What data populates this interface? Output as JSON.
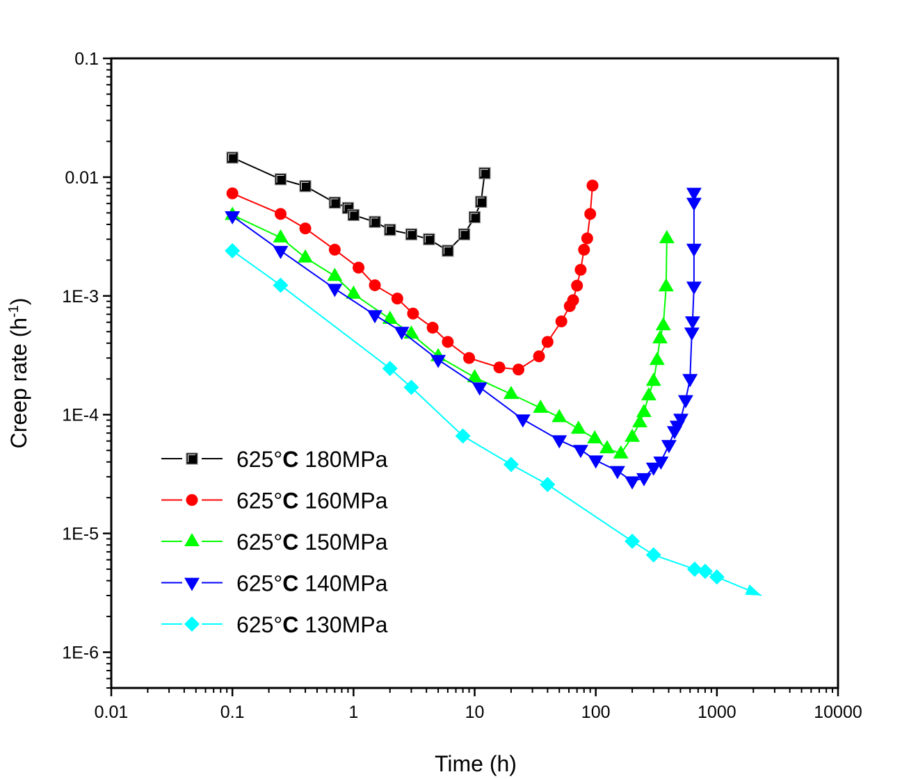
{
  "chart_data": {
    "type": "line",
    "title": "",
    "xlabel": "Time (h)",
    "ylabel": "Creep rate (h",
    "ylabel_superscript": "-1",
    "ylabel_suffix": ")",
    "xscale": "log",
    "yscale": "log",
    "xlim": [
      0.01,
      10000
    ],
    "ylim": [
      5e-07,
      0.1
    ],
    "grid": false,
    "legend_position": "bottom-left",
    "x_ticks": [
      {
        "value": 0.01,
        "label": "0.01"
      },
      {
        "value": 0.1,
        "label": "0.1"
      },
      {
        "value": 1,
        "label": "1"
      },
      {
        "value": 10,
        "label": "10"
      },
      {
        "value": 100,
        "label": "100"
      },
      {
        "value": 1000,
        "label": "1000"
      },
      {
        "value": 10000,
        "label": "10000"
      }
    ],
    "y_ticks": [
      {
        "value": 0.1,
        "label": "0.1"
      },
      {
        "value": 0.01,
        "label": "0.01"
      },
      {
        "value": 0.001,
        "label": "1E-3"
      },
      {
        "value": 0.0001,
        "label": "1E-4"
      },
      {
        "value": 1e-05,
        "label": "1E-5"
      },
      {
        "value": 1e-06,
        "label": "1E-6"
      }
    ],
    "series": [
      {
        "name": "625°C 180MPa",
        "legend_prefix": "625°",
        "legend_bold": "C",
        "legend_suffix": " 180MPa",
        "color": "#000000",
        "marker": "square",
        "x": [
          0.1,
          0.25,
          0.4,
          0.7,
          0.9,
          1.0,
          1.5,
          2.0,
          3.0,
          4.2,
          6.0,
          8.2,
          10.0,
          11.3,
          12.1
        ],
        "y": [
          0.0146,
          0.0096,
          0.0084,
          0.0061,
          0.0055,
          0.0048,
          0.0042,
          0.0036,
          0.0033,
          0.003,
          0.0024,
          0.0033,
          0.0046,
          0.0062,
          0.0108
        ]
      },
      {
        "name": "625°C 160MPa",
        "legend_prefix": "625°",
        "legend_bold": "C",
        "legend_suffix": " 160MPa",
        "color": "#ff0000",
        "marker": "circle",
        "x": [
          0.1,
          0.25,
          0.4,
          0.7,
          1.1,
          1.5,
          2.3,
          3.1,
          4.5,
          6.0,
          9.0,
          16,
          23,
          34,
          40,
          52,
          61,
          65,
          70,
          75,
          80,
          85,
          90,
          94
        ],
        "y": [
          0.0073,
          0.0049,
          0.0037,
          0.00245,
          0.00173,
          0.00123,
          0.00095,
          0.00071,
          0.00054,
          0.00041,
          0.0003,
          0.00025,
          0.00024,
          0.00031,
          0.00041,
          0.00061,
          0.00082,
          0.00092,
          0.00122,
          0.00166,
          0.00245,
          0.00305,
          0.0049,
          0.0085
        ]
      },
      {
        "name": "625°C 150MPa",
        "legend_prefix": "625°",
        "legend_bold": "C",
        "legend_suffix": " 150MPa",
        "color": "#00ff00",
        "marker": "triangle-up",
        "x": [
          0.1,
          0.25,
          0.4,
          0.7,
          1.0,
          2.0,
          3.0,
          5.0,
          10,
          20,
          35,
          50,
          72,
          98,
          124,
          161,
          200,
          231,
          250,
          274,
          300,
          321,
          339,
          361,
          381,
          386
        ],
        "y": [
          0.0048,
          0.0031,
          0.0021,
          0.00147,
          0.00104,
          0.00064,
          0.00048,
          0.00031,
          0.000206,
          0.000149,
          0.000114,
          9.5e-05,
          7.6e-05,
          6.3e-05,
          5.2e-05,
          4.7e-05,
          6.5e-05,
          8.6e-05,
          0.000105,
          0.000145,
          0.000192,
          0.000288,
          0.000438,
          0.000565,
          0.0012,
          0.00305
        ]
      },
      {
        "name": "625°C 140MPa",
        "legend_prefix": "625°",
        "legend_bold": "C",
        "legend_suffix": " 140MPa",
        "color": "#0000ff",
        "marker": "triangle-down",
        "x": [
          0.1,
          0.25,
          0.7,
          1.5,
          2.5,
          5.0,
          11,
          25,
          50,
          75,
          100,
          151,
          200,
          250,
          300,
          345,
          402,
          447,
          471,
          504,
          552,
          600,
          621,
          630,
          647,
          647,
          647,
          647
        ],
        "y": [
          0.0047,
          0.0024,
          0.00115,
          0.00069,
          0.0005,
          0.00029,
          0.00017,
          9.14e-05,
          6.1e-05,
          5.06e-05,
          4.13e-05,
          3.36e-05,
          2.75e-05,
          2.93e-05,
          3.59e-05,
          4.04e-05,
          5.56e-05,
          7.28e-05,
          8.1e-05,
          9.27e-05,
          0.000133,
          0.0002,
          0.000493,
          0.000612,
          0.0012,
          0.0025,
          0.0061,
          0.0074
        ]
      },
      {
        "name": "625°C 130MPa",
        "legend_prefix": "625°",
        "legend_bold": "C",
        "legend_suffix": " 130MPa",
        "color": "#00ffff",
        "marker": "diamond",
        "x": [
          0.1,
          0.25,
          2.0,
          3.0,
          8.0,
          20,
          40,
          200,
          300,
          655,
          800,
          1000
        ],
        "y": [
          0.0024,
          0.00123,
          0.000245,
          0.00017,
          6.62e-05,
          3.81e-05,
          2.58e-05,
          8.6e-06,
          6.6e-06,
          5e-06,
          4.8e-06,
          4.3e-06
        ],
        "arrow_to": {
          "x": 2330,
          "y": 3e-06
        }
      }
    ]
  }
}
